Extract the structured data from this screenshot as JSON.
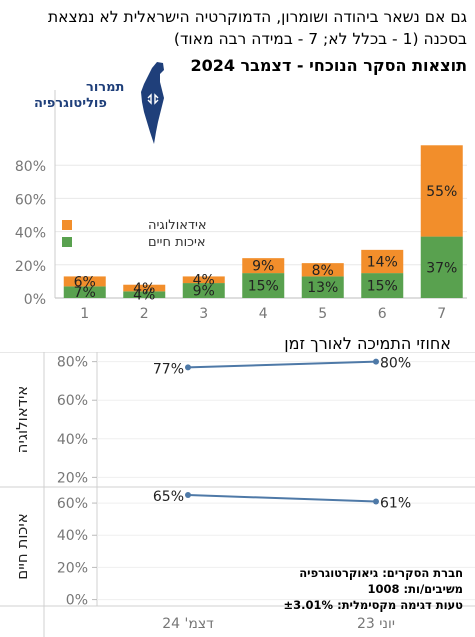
{
  "header": {
    "question": "גם אם נשאר ביהודה ושומרון, הדמוקרטיה הישראלית לא נמצאת בסכנה (1 - בכלל לא; 7 - במידה רבה מאוד)",
    "subtitle": "תוצאות הסקר הנוכחי - דצמבר 2024"
  },
  "logo": {
    "line1": "תמרור",
    "line2": "פוליטוגרפיה"
  },
  "colors": {
    "ideology": "#f28e2b",
    "life": "#59a14f",
    "line": "#4e79a7"
  },
  "chart_data": [
    {
      "type": "bar",
      "stacked": true,
      "categories": [
        "1",
        "2",
        "3",
        "4",
        "5",
        "6",
        "7"
      ],
      "series": [
        {
          "name": "איכות חיים",
          "values": [
            7,
            4,
            9,
            15,
            13,
            15,
            37
          ]
        },
        {
          "name": "אידאולוגיה",
          "values": [
            6,
            4,
            4,
            9,
            8,
            14,
            55
          ]
        }
      ],
      "y_ticks": [
        "0%",
        "20%",
        "40%",
        "60%",
        "80%"
      ],
      "ylim": [
        0,
        95
      ],
      "legend": "left",
      "legend_labels": [
        "אידאולוגיה",
        "איכות חיים"
      ]
    },
    {
      "type": "line",
      "title": "אחוזי התמיכה לאורך זמן",
      "x": [
        "יוני 23",
        "דצמ' 24"
      ],
      "panels": [
        {
          "label": "אידאולוגיה",
          "values": [
            80,
            77
          ],
          "data_labels": [
            "80%",
            "77%"
          ],
          "y_ticks": [
            "20%",
            "40%",
            "60%",
            "80%"
          ],
          "ylim": [
            15,
            85
          ]
        },
        {
          "label": "איכות חיים",
          "values": [
            61,
            65
          ],
          "data_labels": [
            "61%",
            "65%"
          ],
          "y_ticks": [
            "0%",
            "20%",
            "40%",
            "60%"
          ],
          "ylim": [
            -4,
            70
          ]
        }
      ]
    }
  ],
  "footnote": {
    "company": "חברת הסקרים: גיאוקרטוגרפיה",
    "respondents": "משיבים/ות: 1008",
    "error": "טעות דגימה מקסימלית: ±3.01%"
  }
}
